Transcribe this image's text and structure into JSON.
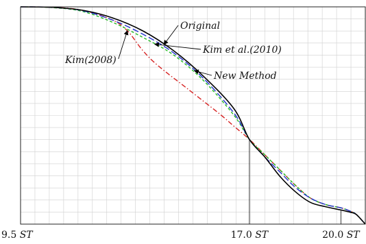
{
  "chart_data": {
    "type": "line",
    "title": "",
    "xlabel": "",
    "ylabel": "",
    "grid": true,
    "x_unit_label": "ST",
    "xlim": [
      9.5,
      20.8
    ],
    "ylim": [
      0,
      1
    ],
    "x_ticks": [
      {
        "value": 9.5,
        "number": "9.5",
        "unit": "ST"
      },
      {
        "value": 17.0,
        "number": "17.0",
        "unit": "ST"
      },
      {
        "value": 20.0,
        "number": "20.0",
        "unit": "ST"
      }
    ],
    "reference_lines_x": [
      17.0,
      20.0
    ],
    "series": [
      {
        "name": "Original",
        "color": "#000000",
        "style": "solid",
        "x": [
          9.5,
          10.5,
          11.5,
          12.5,
          13.5,
          14.5,
          15.5,
          16.5,
          17.0,
          17.5,
          18.0,
          18.5,
          19.0,
          19.5,
          20.0,
          20.3,
          20.5,
          20.8
        ],
        "y": [
          1.0,
          0.998,
          0.985,
          0.95,
          0.89,
          0.8,
          0.68,
          0.53,
          0.39,
          0.31,
          0.22,
          0.15,
          0.1,
          0.08,
          0.065,
          0.055,
          0.045,
          0.0
        ]
      },
      {
        "name": "Kim(2008)",
        "color": "#d62020",
        "style": "dashdot",
        "x": [
          9.5,
          10.5,
          11.5,
          12.5,
          13.0,
          13.5,
          14.0,
          15.0,
          16.0,
          16.5,
          17.0,
          17.5,
          18.0,
          18.5,
          19.0,
          19.5,
          20.0,
          20.3,
          20.5,
          20.8
        ],
        "y": [
          1.0,
          0.998,
          0.985,
          0.94,
          0.89,
          0.8,
          0.73,
          0.62,
          0.51,
          0.45,
          0.39,
          0.32,
          0.25,
          0.18,
          0.12,
          0.09,
          0.075,
          0.06,
          0.045,
          0.0
        ]
      },
      {
        "name": "Kim et al.(2010)",
        "color": "#22bb22",
        "style": "dashed",
        "x": [
          9.5,
          10.5,
          11.5,
          12.5,
          13.5,
          14.5,
          15.5,
          16.5,
          17.0,
          17.5,
          18.0,
          18.5,
          19.0,
          19.5,
          20.0,
          20.3,
          20.5,
          20.8
        ],
        "y": [
          1.0,
          0.997,
          0.98,
          0.93,
          0.86,
          0.78,
          0.66,
          0.5,
          0.39,
          0.32,
          0.25,
          0.18,
          0.12,
          0.09,
          0.075,
          0.06,
          0.045,
          0.0
        ]
      },
      {
        "name": "New Method",
        "color": "#2233cc",
        "style": "longdash",
        "x": [
          9.5,
          10.5,
          11.5,
          12.5,
          13.5,
          14.5,
          15.5,
          16.5,
          17.0,
          17.5,
          18.0,
          18.5,
          19.0,
          19.5,
          20.0,
          20.3,
          20.5,
          20.8
        ],
        "y": [
          1.0,
          0.998,
          0.983,
          0.94,
          0.875,
          0.79,
          0.67,
          0.51,
          0.39,
          0.31,
          0.24,
          0.17,
          0.12,
          0.09,
          0.075,
          0.06,
          0.045,
          0.0
        ]
      }
    ],
    "annotations": [
      {
        "text": "Original",
        "series": "Original",
        "at_x": 14.2
      },
      {
        "text": "Kim et al.(2010)",
        "series": "Kim et al.(2010)",
        "at_x": 13.9
      },
      {
        "text": "Kim(2008)",
        "series": "Kim(2008)",
        "at_x": 13.0
      },
      {
        "text": "New Method",
        "series": "New Method",
        "at_x": 15.2
      }
    ]
  }
}
